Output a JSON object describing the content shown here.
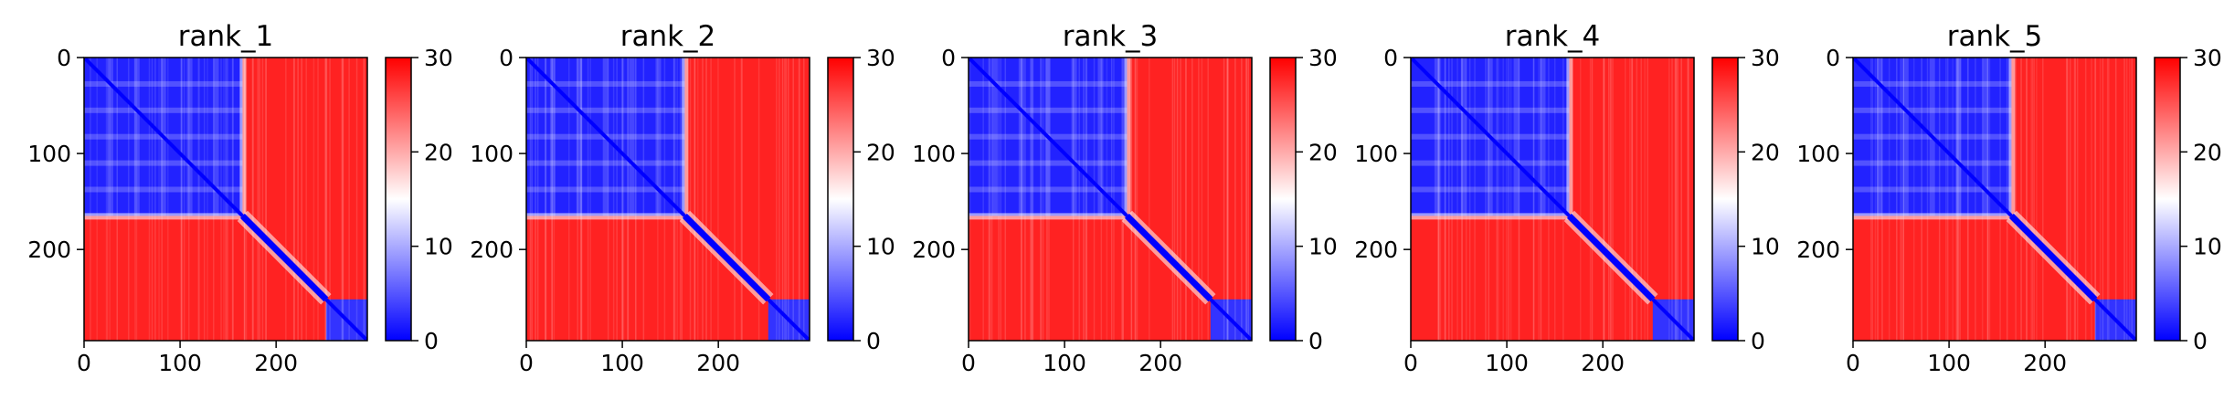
{
  "figure": {
    "panel_count": 5
  },
  "chart_data": [
    {
      "type": "heatmap",
      "title": "rank_1",
      "x_ticks": [
        0,
        100,
        200
      ],
      "y_ticks": [
        0,
        100,
        200
      ],
      "x_range": [
        0,
        295
      ],
      "y_range": [
        0,
        295
      ],
      "colorbar": {
        "min": 0,
        "max": 30,
        "ticks": [
          0,
          10,
          20,
          30
        ],
        "colormap": "bwr",
        "colors": [
          "#0000ff",
          "#ffffff",
          "#ff0000"
        ]
      },
      "blocks": [
        {
          "start": 0,
          "end": 165,
          "value": 2
        },
        {
          "start": 165,
          "end": 252,
          "value": 28
        },
        {
          "start": 252,
          "end": 295,
          "value": 3
        }
      ],
      "diagonal_value": 0
    },
    {
      "type": "heatmap",
      "title": "rank_2",
      "x_ticks": [
        0,
        100,
        200
      ],
      "y_ticks": [
        0,
        100,
        200
      ],
      "x_range": [
        0,
        295
      ],
      "y_range": [
        0,
        295
      ],
      "colorbar": {
        "min": 0,
        "max": 30,
        "ticks": [
          0,
          10,
          20,
          30
        ],
        "colormap": "bwr",
        "colors": [
          "#0000ff",
          "#ffffff",
          "#ff0000"
        ]
      },
      "blocks": [
        {
          "start": 0,
          "end": 165,
          "value": 2
        },
        {
          "start": 165,
          "end": 252,
          "value": 28
        },
        {
          "start": 252,
          "end": 295,
          "value": 3
        }
      ],
      "diagonal_value": 0
    },
    {
      "type": "heatmap",
      "title": "rank_3",
      "x_ticks": [
        0,
        100,
        200
      ],
      "y_ticks": [
        0,
        100,
        200
      ],
      "x_range": [
        0,
        295
      ],
      "y_range": [
        0,
        295
      ],
      "colorbar": {
        "min": 0,
        "max": 30,
        "ticks": [
          0,
          10,
          20,
          30
        ],
        "colormap": "bwr",
        "colors": [
          "#0000ff",
          "#ffffff",
          "#ff0000"
        ]
      },
      "blocks": [
        {
          "start": 0,
          "end": 165,
          "value": 2
        },
        {
          "start": 165,
          "end": 252,
          "value": 28
        },
        {
          "start": 252,
          "end": 295,
          "value": 3
        }
      ],
      "diagonal_value": 0
    },
    {
      "type": "heatmap",
      "title": "rank_4",
      "x_ticks": [
        0,
        100,
        200
      ],
      "y_ticks": [
        0,
        100,
        200
      ],
      "x_range": [
        0,
        295
      ],
      "y_range": [
        0,
        295
      ],
      "colorbar": {
        "min": 0,
        "max": 30,
        "ticks": [
          0,
          10,
          20,
          30
        ],
        "colormap": "bwr",
        "colors": [
          "#0000ff",
          "#ffffff",
          "#ff0000"
        ]
      },
      "blocks": [
        {
          "start": 0,
          "end": 165,
          "value": 2
        },
        {
          "start": 165,
          "end": 252,
          "value": 28
        },
        {
          "start": 252,
          "end": 295,
          "value": 3
        }
      ],
      "diagonal_value": 0
    },
    {
      "type": "heatmap",
      "title": "rank_5",
      "x_ticks": [
        0,
        100,
        200
      ],
      "y_ticks": [
        0,
        100,
        200
      ],
      "x_range": [
        0,
        295
      ],
      "y_range": [
        0,
        295
      ],
      "colorbar": {
        "min": 0,
        "max": 30,
        "ticks": [
          0,
          10,
          20,
          30
        ],
        "colormap": "bwr",
        "colors": [
          "#0000ff",
          "#ffffff",
          "#ff0000"
        ]
      },
      "blocks": [
        {
          "start": 0,
          "end": 165,
          "value": 2
        },
        {
          "start": 165,
          "end": 252,
          "value": 28
        },
        {
          "start": 252,
          "end": 295,
          "value": 3
        }
      ],
      "diagonal_value": 0
    }
  ]
}
